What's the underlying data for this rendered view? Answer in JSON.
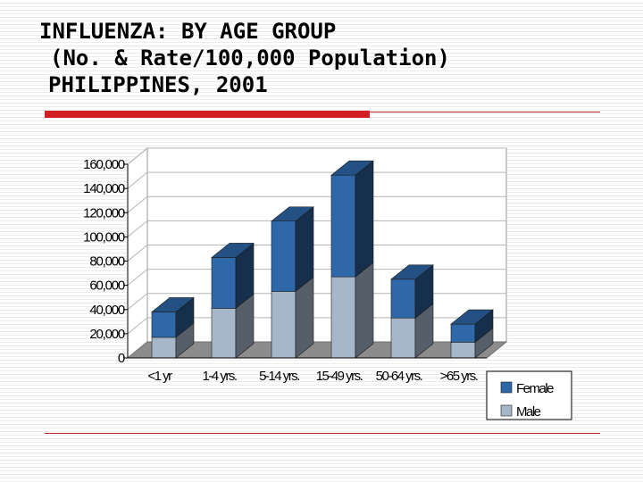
{
  "slide": {
    "title_lines": [
      "INFLUENZA: BY AGE GROUP",
      "(No. & Rate/100,000 Population)",
      "PHILIPPINES, 2001"
    ]
  },
  "chart_data": {
    "type": "bar",
    "stacked": true,
    "style": "3d",
    "categories": [
      "<1 yr",
      "1-4 yrs.",
      "5-14 yrs.",
      "15-49 yrs.",
      "50-64 yrs.",
      ">65 yrs."
    ],
    "series": [
      {
        "name": "Male",
        "values": [
          17000,
          41000,
          55000,
          67000,
          33000,
          13000
        ],
        "color": "#a6b7c9"
      },
      {
        "name": "Female",
        "values": [
          21000,
          42000,
          58000,
          84000,
          32000,
          15000
        ],
        "color": "#2e68a8"
      }
    ],
    "yticks": [
      "0",
      "20,000",
      "40,000",
      "60,000",
      "80,000",
      "100,000",
      "120,000",
      "140,000",
      "160,000"
    ],
    "ylim": [
      0,
      160000
    ],
    "grid": true,
    "legend": {
      "position": "bottom-right",
      "order": [
        "Female",
        "Male"
      ]
    }
  }
}
